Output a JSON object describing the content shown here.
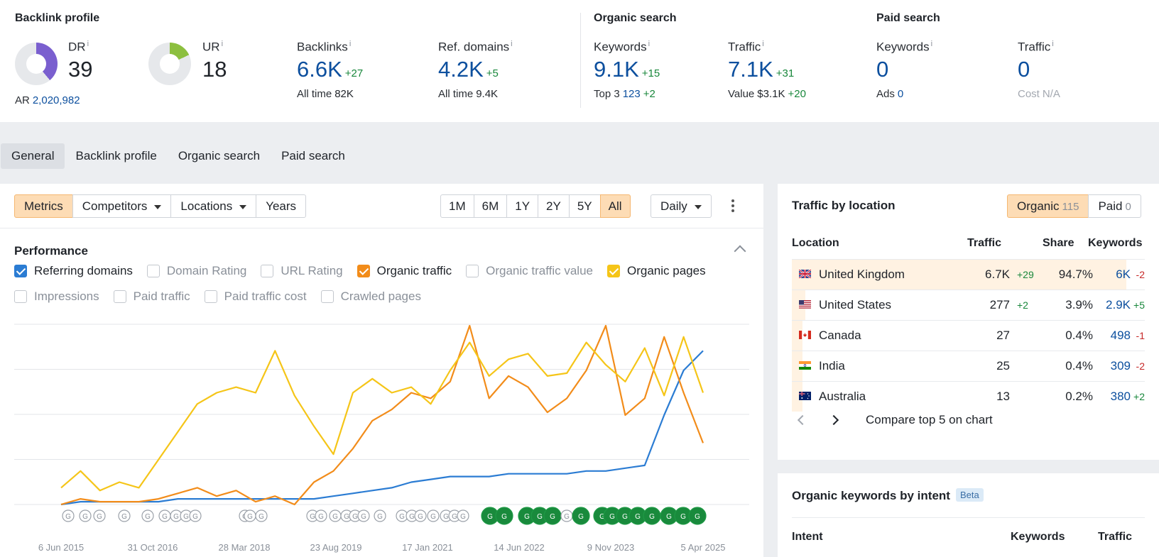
{
  "summary": {
    "backlink_title": "Backlink profile",
    "organic_title": "Organic search",
    "paid_title": "Paid search",
    "dr": {
      "label": "DR",
      "info": "i",
      "value": "39",
      "fraction": 0.39,
      "color": "#7a5fcf"
    },
    "ur": {
      "label": "UR",
      "info": "i",
      "value": "18",
      "fraction": 0.18,
      "color": "#8cbf3f"
    },
    "ar": {
      "label": "AR",
      "value": "2,020,982"
    },
    "backlinks": {
      "label": "Backlinks",
      "info": "i",
      "value": "6.6K",
      "delta": "+27",
      "sub_label": "All time",
      "sub_value": "82K"
    },
    "ref_domains": {
      "label": "Ref. domains",
      "info": "i",
      "value": "4.2K",
      "delta": "+5",
      "sub_label": "All time",
      "sub_value": "9.4K"
    },
    "org_keywords": {
      "label": "Keywords",
      "info": "i",
      "value": "9.1K",
      "delta": "+15",
      "sub_label": "Top 3",
      "sub_value": "123",
      "sub_delta": "+2"
    },
    "org_traffic": {
      "label": "Traffic",
      "info": "i",
      "value": "7.1K",
      "delta": "+31",
      "sub_label": "Value",
      "sub_value": "$3.1K",
      "sub_delta": "+20"
    },
    "paid_keywords": {
      "label": "Keywords",
      "info": "i",
      "value": "0",
      "sub_label": "Ads",
      "sub_value": "0"
    },
    "paid_traffic": {
      "label": "Traffic",
      "info": "i",
      "value": "0",
      "sub_label": "Cost",
      "sub_value": "N/A"
    }
  },
  "tabs": [
    "General",
    "Backlink profile",
    "Organic search",
    "Paid search"
  ],
  "toolbar": {
    "metrics": "Metrics",
    "competitors": "Competitors",
    "locations": "Locations",
    "years": "Years",
    "ranges": [
      "1M",
      "6M",
      "1Y",
      "2Y",
      "5Y",
      "All"
    ],
    "interval": "Daily"
  },
  "performance": {
    "title": "Performance",
    "checkboxes_row1": [
      {
        "label": "Referring domains",
        "checked": true,
        "color": "#2b7cd3"
      },
      {
        "label": "Domain Rating",
        "checked": false
      },
      {
        "label": "URL Rating",
        "checked": false
      },
      {
        "label": "Organic traffic",
        "checked": true,
        "color": "#f28c1a"
      },
      {
        "label": "Organic traffic value",
        "checked": false
      },
      {
        "label": "Organic pages",
        "checked": true,
        "color": "#f5c518"
      }
    ],
    "checkboxes_row2": [
      {
        "label": "Impressions",
        "checked": false
      },
      {
        "label": "Paid traffic",
        "checked": false
      },
      {
        "label": "Paid traffic cost",
        "checked": false
      },
      {
        "label": "Crawled pages",
        "checked": false
      }
    ]
  },
  "chart_data": {
    "type": "line",
    "x_tick_labels": [
      "6 Jun 2015",
      "31 Oct 2016",
      "28 Mar 2018",
      "23 Aug 2019",
      "17 Jan 2021",
      "14 Jun 2022",
      "9 Nov 2023",
      "5 Apr 2025"
    ],
    "grid": true,
    "update_marker_label": "G",
    "series": [
      {
        "name": "Organic pages",
        "color": "#f5c518",
        "values": [
          6,
          12,
          5,
          8,
          6,
          16,
          26,
          36,
          40,
          42,
          40,
          55,
          39,
          28,
          18,
          40,
          45,
          40,
          42,
          36,
          48,
          58,
          46,
          52,
          54,
          46,
          47,
          58,
          50,
          44,
          56,
          39,
          60,
          40
        ]
      },
      {
        "name": "Organic traffic",
        "color": "#f28c1a",
        "values": [
          0,
          2,
          1,
          1,
          1,
          2,
          4,
          6,
          3,
          5,
          1,
          3,
          0,
          8,
          12,
          20,
          30,
          34,
          40,
          38,
          44,
          64,
          38,
          46,
          42,
          33,
          38,
          48,
          64,
          32,
          38,
          60,
          40,
          22
        ]
      },
      {
        "name": "Referring domains",
        "color": "#2b7cd3",
        "values": [
          0,
          1,
          1,
          1,
          1,
          1,
          2,
          2,
          2,
          2,
          2,
          2,
          2,
          2,
          3,
          4,
          5,
          6,
          8,
          9,
          10,
          10,
          10,
          11,
          11,
          11,
          11,
          12,
          12,
          13,
          14,
          32,
          48,
          55
        ]
      }
    ]
  },
  "traffic_location": {
    "title": "Traffic by location",
    "organic_label": "Organic",
    "organic_count": "115",
    "paid_label": "Paid",
    "paid_count": "0",
    "headers": {
      "location": "Location",
      "traffic": "Traffic",
      "share": "Share",
      "keywords": "Keywords"
    },
    "rows": [
      {
        "country": "United Kingdom",
        "flag": "uk",
        "traffic": "6.7K",
        "traffic_delta": "+29",
        "share": "94.7%",
        "share_value": 0.947,
        "keywords": "6K",
        "kw_delta": "-2"
      },
      {
        "country": "United States",
        "flag": "us",
        "traffic": "277",
        "traffic_delta": "+2",
        "share": "3.9%",
        "share_value": 0.039,
        "keywords": "2.9K",
        "kw_delta": "+5"
      },
      {
        "country": "Canada",
        "flag": "ca",
        "traffic": "27",
        "traffic_delta": "",
        "share": "0.4%",
        "share_value": 0.004,
        "keywords": "498",
        "kw_delta": "-1"
      },
      {
        "country": "India",
        "flag": "in",
        "traffic": "25",
        "traffic_delta": "",
        "share": "0.4%",
        "share_value": 0.004,
        "keywords": "309",
        "kw_delta": "-2"
      },
      {
        "country": "Australia",
        "flag": "au",
        "traffic": "13",
        "traffic_delta": "",
        "share": "0.2%",
        "share_value": 0.002,
        "keywords": "380",
        "kw_delta": "+2"
      }
    ],
    "compare": "Compare top 5 on chart"
  },
  "intent": {
    "title": "Organic keywords by intent",
    "badge": "Beta",
    "headers": {
      "intent": "Intent",
      "keywords": "Keywords",
      "traffic": "Traffic"
    }
  }
}
